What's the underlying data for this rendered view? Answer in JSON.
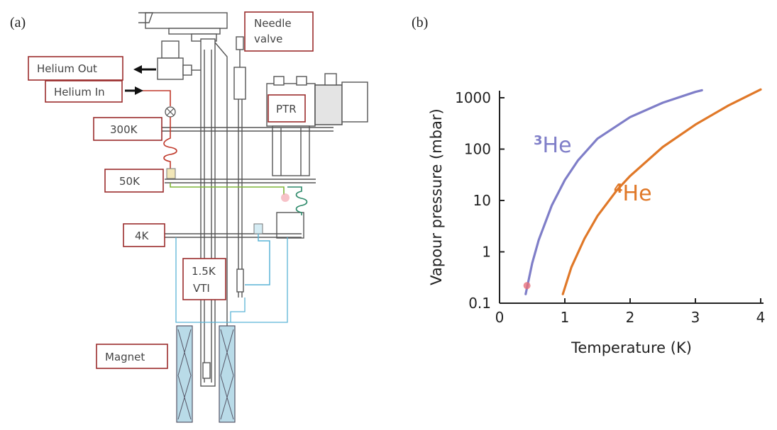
{
  "panel_a": {
    "letter": "(a)",
    "labels": {
      "helium_out": "Helium Out",
      "helium_in": "Helium In",
      "needle_valve_line1": "Needle",
      "needle_valve_line2": "valve",
      "ptr": "PTR",
      "stage_300k": "300K",
      "stage_50k": "50K",
      "stage_4k": "4K",
      "vti_line1": "1.5K",
      "vti_line2": "VTI",
      "magnet": "Magnet"
    },
    "colors": {
      "label_border": "#9b2c2c",
      "helium_in_line": "#c0392b",
      "green_line": "#7fb539",
      "blue_line": "#5ab4d6",
      "magnet_fill": "#b9dbe8"
    }
  },
  "panel_b": {
    "letter": "(b)",
    "chart_data": {
      "type": "line",
      "xlabel": "Temperature (K)",
      "ylabel": "Vapour pressure (mbar)",
      "xlim": [
        0,
        4
      ],
      "ylim": [
        0.1,
        1000
      ],
      "yscale": "log",
      "x_ticks": [
        "0",
        "1",
        "2",
        "3",
        "4"
      ],
      "y_ticks": [
        "0.1",
        "1",
        "10",
        "100",
        "1000"
      ],
      "grid": false,
      "series": [
        {
          "name": "³He",
          "label_main": "He",
          "label_sup": "3",
          "color": "#7f7ec8",
          "x": [
            0.4,
            0.5,
            0.6,
            0.8,
            1.0,
            1.2,
            1.5,
            2.0,
            2.5,
            3.0,
            3.1
          ],
          "y": [
            0.15,
            0.6,
            1.7,
            8,
            25,
            60,
            160,
            420,
            800,
            1300,
            1400
          ]
        },
        {
          "name": "⁴He",
          "label_main": "He",
          "label_sup": "4",
          "color": "#e07828",
          "x": [
            0.97,
            1.1,
            1.3,
            1.5,
            1.8,
            2.0,
            2.5,
            3.0,
            3.5,
            4.0
          ],
          "y": [
            0.15,
            0.5,
            1.8,
            5,
            16,
            30,
            110,
            300,
            700,
            1450
          ]
        }
      ],
      "marker": {
        "x": 0.42,
        "y": 0.22,
        "color": "#e8707a"
      }
    }
  }
}
